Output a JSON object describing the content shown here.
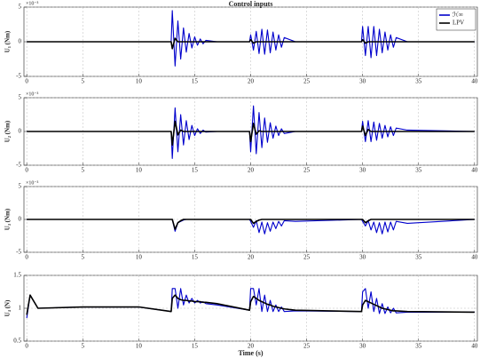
{
  "chart_data": [
    {
      "type": "line",
      "title": "Control inputs",
      "ylabel": "U₁ (Nm)",
      "y_multiplier": "×10⁻³",
      "legend": "upper right",
      "grid": true,
      "xlim": [
        -0.25,
        40.25
      ],
      "xticks": [
        0,
        5,
        10,
        15,
        20,
        25,
        30,
        35,
        40
      ],
      "ylim": [
        -5,
        5
      ],
      "yticks": [
        -5,
        0,
        5
      ],
      "x": [
        0,
        0.3,
        1,
        5,
        10,
        12.9,
        13,
        13.25,
        13.5,
        13.75,
        14,
        14.25,
        14.5,
        14.75,
        15,
        15.25,
        15.5,
        15.75,
        16,
        17,
        19.9,
        20,
        20.25,
        20.5,
        20.75,
        21,
        21.25,
        21.5,
        21.75,
        22,
        22.25,
        22.5,
        22.75,
        23,
        24,
        29.9,
        30,
        30.25,
        30.5,
        30.75,
        31,
        31.25,
        31.5,
        31.75,
        32,
        32.25,
        32.5,
        32.75,
        33,
        34,
        40
      ],
      "series": [
        {
          "name": "ℋ∞",
          "color": "#0000cc",
          "values": [
            0,
            0,
            0,
            0,
            0,
            0,
            4.5,
            -3.5,
            3,
            -2.5,
            2,
            -1.5,
            1.2,
            -0.9,
            0.7,
            -0.5,
            0.4,
            -0.3,
            0.2,
            0,
            0,
            1,
            -1.2,
            1.5,
            -1.7,
            1.8,
            -1.8,
            1.7,
            -1.6,
            1.4,
            -1.2,
            1,
            -0.8,
            0.6,
            0,
            0,
            2.2,
            -2,
            2.2,
            -2.3,
            2.2,
            -2,
            1.8,
            -1.6,
            1.4,
            -1.2,
            1,
            -0.8,
            0.6,
            0,
            0
          ]
        },
        {
          "name": "LPV",
          "color": "#000000",
          "values": [
            0,
            0,
            0,
            0,
            0,
            0,
            -1,
            0.5,
            0,
            0,
            0,
            0,
            0,
            0,
            0,
            0,
            0,
            0,
            0,
            0,
            0,
            0.3,
            -0.2,
            0,
            0,
            0,
            0,
            0,
            0,
            0,
            0,
            0,
            0,
            0,
            0,
            0,
            0.3,
            -0.2,
            0,
            0,
            0,
            0,
            0,
            0,
            0,
            0,
            0,
            0,
            0,
            0,
            0
          ]
        }
      ]
    },
    {
      "type": "line",
      "ylabel": "U₂ (Nm)",
      "y_multiplier": "×10⁻³",
      "grid": true,
      "xlim": [
        -0.25,
        40.25
      ],
      "xticks": [
        0,
        5,
        10,
        15,
        20,
        25,
        30,
        35,
        40
      ],
      "ylim": [
        -5,
        5
      ],
      "yticks": [
        -5,
        0,
        5
      ],
      "x": [
        0,
        0.3,
        1,
        5,
        10,
        12.9,
        13,
        13.25,
        13.5,
        13.75,
        14,
        14.25,
        14.5,
        14.75,
        15,
        15.25,
        15.5,
        15.75,
        16,
        17,
        19.9,
        20,
        20.25,
        20.5,
        20.75,
        21,
        21.25,
        21.5,
        21.75,
        22,
        22.25,
        22.5,
        22.75,
        23,
        24,
        29.9,
        30,
        30.25,
        30.5,
        30.75,
        31,
        31.25,
        31.5,
        31.75,
        32,
        32.25,
        32.5,
        32.75,
        33,
        34,
        40
      ],
      "series": [
        {
          "color": "#0000cc",
          "values": [
            0,
            0,
            0,
            0,
            0,
            0,
            -4,
            3.5,
            -3,
            2.5,
            -2,
            1.6,
            -1.2,
            0.9,
            -0.6,
            0.4,
            -0.3,
            0.2,
            -0.1,
            0,
            0,
            -3,
            3.8,
            -3.3,
            2.8,
            -2.4,
            2,
            -1.6,
            1.3,
            -1,
            0.8,
            -0.6,
            0.4,
            -0.3,
            0,
            0,
            1.5,
            -1.5,
            1.6,
            -1.5,
            1.4,
            -1.3,
            1.2,
            -1,
            0.9,
            -0.8,
            0.7,
            -0.6,
            0.5,
            0.2,
            0
          ]
        },
        {
          "color": "#000000",
          "values": [
            0,
            0,
            0,
            0,
            0,
            0,
            -2,
            1.5,
            -0.5,
            0.2,
            0,
            0,
            0,
            0,
            0,
            0,
            0,
            0,
            0,
            0,
            0,
            -1.5,
            1.2,
            -0.4,
            0.1,
            0,
            0,
            0,
            0,
            0,
            0,
            0,
            0,
            0,
            0,
            0,
            0.8,
            -0.6,
            0.3,
            0,
            0,
            0,
            0,
            0,
            0,
            0,
            0,
            0,
            0,
            0,
            0
          ]
        }
      ]
    },
    {
      "type": "line",
      "ylabel": "U₃ (Nm)",
      "y_multiplier": "×10⁻³",
      "grid": true,
      "xlim": [
        -0.25,
        40.25
      ],
      "xticks": [
        0,
        5,
        10,
        15,
        20,
        25,
        30,
        35,
        40
      ],
      "ylim": [
        -5,
        5
      ],
      "yticks": [
        -5,
        0,
        5
      ],
      "x": [
        0,
        0.3,
        1,
        5,
        10,
        12.9,
        13,
        13.25,
        13.5,
        13.75,
        14,
        14.25,
        14.5,
        14.75,
        15,
        15.25,
        15.5,
        15.75,
        16,
        17,
        19.9,
        20,
        20.25,
        20.5,
        20.75,
        21,
        21.25,
        21.5,
        21.75,
        22,
        22.25,
        22.5,
        22.75,
        23,
        24,
        29.9,
        30,
        30.25,
        30.5,
        30.75,
        31,
        31.25,
        31.5,
        31.75,
        32,
        32.25,
        32.5,
        32.75,
        33,
        34,
        40
      ],
      "series": [
        {
          "color": "#0000cc",
          "values": [
            0,
            0,
            0,
            0,
            0,
            0,
            0,
            -1.8,
            -0.5,
            -0.3,
            -0.1,
            0,
            0,
            0,
            0,
            0,
            0,
            0,
            0,
            0,
            0,
            -0.3,
            -1.2,
            -0.2,
            -2,
            -0.4,
            -2.2,
            -0.5,
            -1.8,
            -0.4,
            -1.4,
            -0.3,
            -1,
            -0.2,
            -0.3,
            0,
            -0.3,
            -1,
            -0.2,
            -1.6,
            -0.4,
            -2,
            -0.5,
            -2.2,
            -0.4,
            -1.9,
            -0.4,
            -1.6,
            -0.3,
            -0.6,
            0
          ]
        },
        {
          "color": "#000000",
          "values": [
            0,
            0,
            0,
            0,
            0,
            0,
            0,
            -1.5,
            -0.5,
            -0.2,
            0,
            0,
            0,
            0,
            0,
            0,
            0,
            0,
            0,
            0,
            0,
            0,
            -0.6,
            -0.3,
            -0.1,
            0,
            0,
            0,
            0,
            0,
            0,
            0,
            0,
            0,
            0,
            0,
            0,
            -0.5,
            -0.2,
            0,
            0,
            0,
            0,
            0,
            0,
            0,
            0,
            0,
            0,
            0,
            0
          ]
        }
      ]
    },
    {
      "type": "line",
      "ylabel": "U₄ (N)",
      "xlabel": "Time (s)",
      "grid": true,
      "xlim": [
        -0.25,
        40.25
      ],
      "xticks": [
        0,
        5,
        10,
        15,
        20,
        25,
        30,
        35,
        40
      ],
      "ylim": [
        0.5,
        1.5
      ],
      "yticks": [
        0.5,
        1,
        1.5
      ],
      "x": [
        0,
        0.3,
        1,
        5,
        10,
        12.9,
        13,
        13.25,
        13.5,
        13.75,
        14,
        14.25,
        14.5,
        14.75,
        15,
        15.25,
        15.5,
        15.75,
        16,
        17,
        19.9,
        20,
        20.25,
        20.5,
        20.75,
        21,
        21.25,
        21.5,
        21.75,
        22,
        22.25,
        22.5,
        22.75,
        23,
        24,
        29.9,
        30,
        30.25,
        30.5,
        30.75,
        31,
        31.25,
        31.5,
        31.75,
        32,
        32.25,
        32.5,
        32.75,
        33,
        34,
        40
      ],
      "series": [
        {
          "color": "#0000cc",
          "values": [
            0.85,
            1.2,
            1,
            1.02,
            1.02,
            0.95,
            1.3,
            1.3,
            1,
            1.3,
            1.05,
            1.2,
            1.08,
            1.15,
            1.08,
            1.12,
            1.08,
            1.1,
            1.07,
            1.05,
            0.97,
            1.3,
            1.3,
            1.05,
            1.3,
            0.95,
            1.2,
            0.95,
            1.12,
            0.95,
            1.05,
            0.95,
            1.02,
            0.95,
            0.96,
            0.95,
            1.25,
            1.3,
            1,
            1.25,
            0.95,
            1.15,
            0.92,
            1.07,
            0.92,
            1.02,
            0.93,
            1,
            0.93,
            0.94,
            0.94
          ]
        },
        {
          "color": "#000000",
          "values": [
            0.9,
            1.2,
            1,
            1.02,
            1.02,
            0.95,
            1.15,
            1.2,
            1.15,
            1.13,
            1.12,
            1.12,
            1.11,
            1.11,
            1.1,
            1.1,
            1.1,
            1.09,
            1.09,
            1.07,
            0.97,
            1.1,
            1.18,
            1.15,
            1.12,
            1.1,
            1.08,
            1.06,
            1.05,
            1.03,
            1.02,
            1.01,
            1,
            0.99,
            0.97,
            0.95,
            1.05,
            1.12,
            1.1,
            1.08,
            1.06,
            1.04,
            1.02,
            1,
            0.99,
            0.98,
            0.97,
            0.96,
            0.96,
            0.95,
            0.94
          ]
        }
      ]
    }
  ]
}
